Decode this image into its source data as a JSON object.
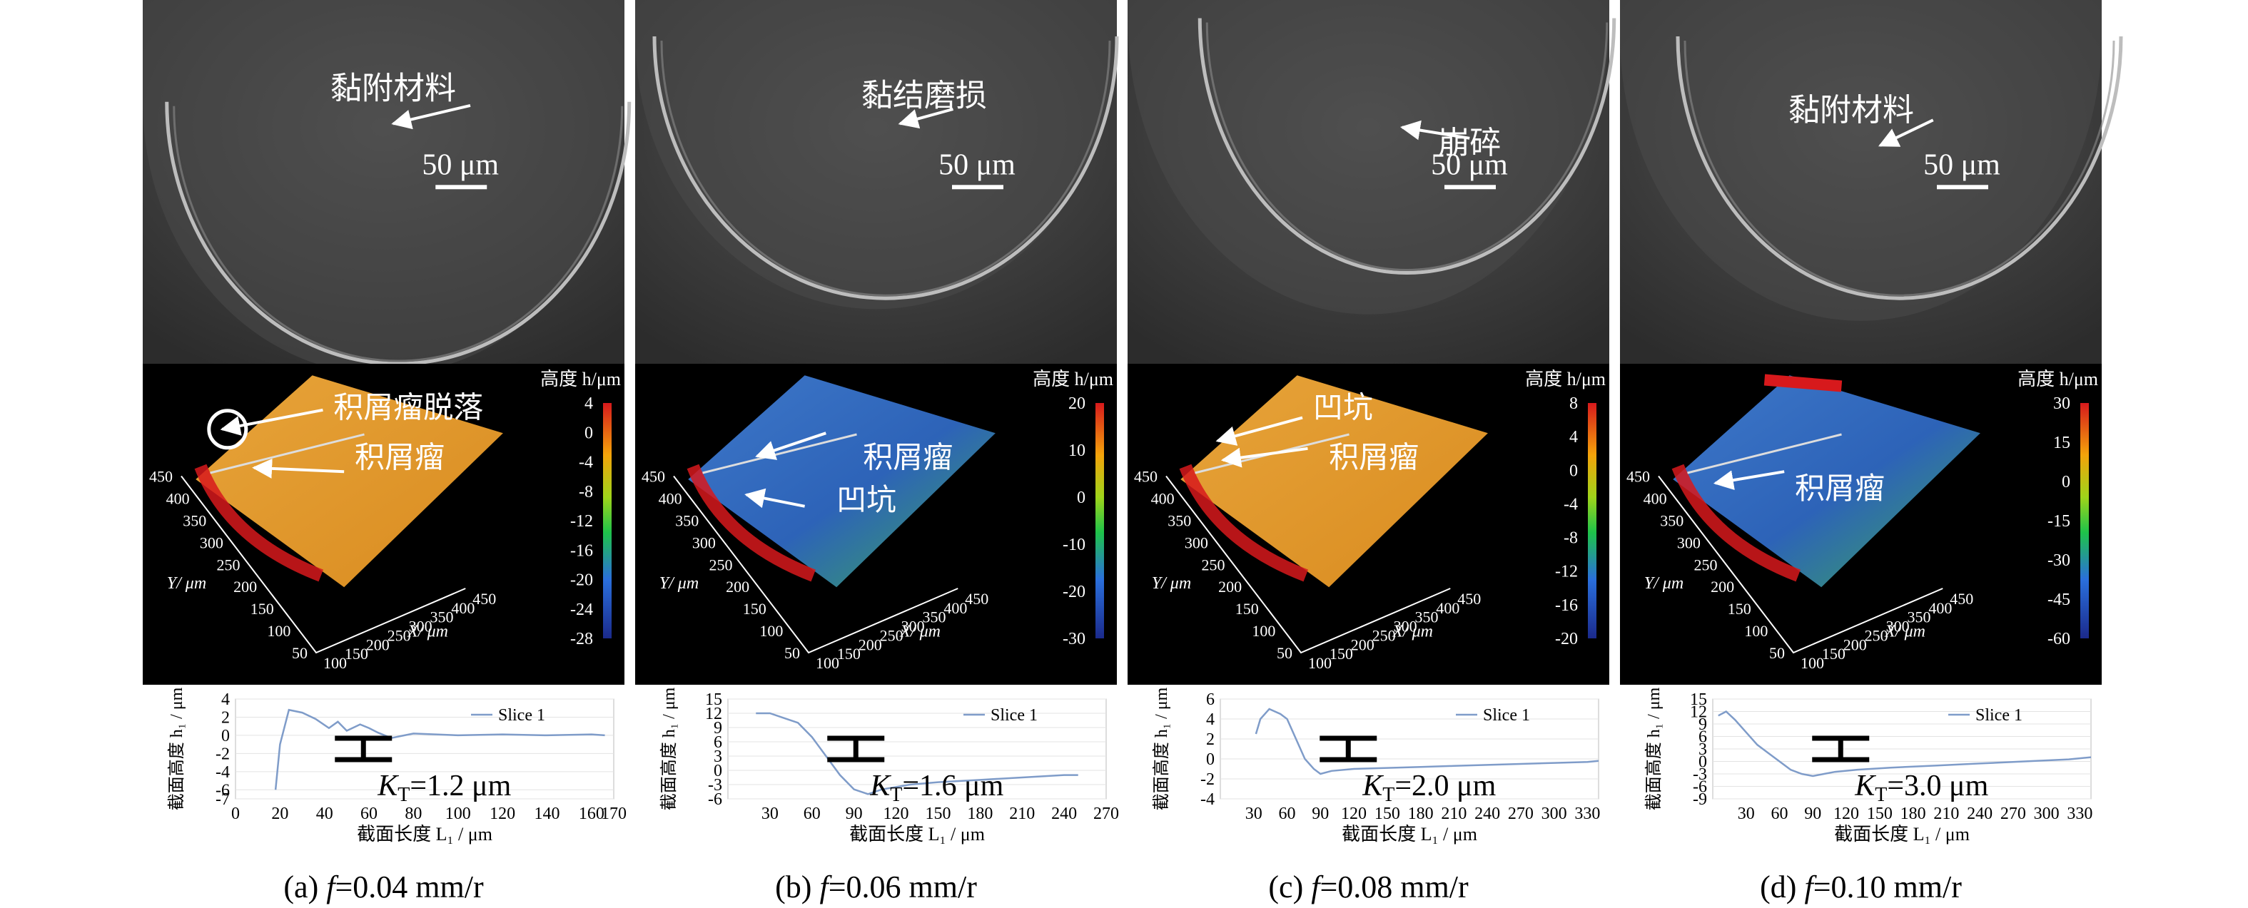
{
  "figure": {
    "panels": [
      {
        "id": "a",
        "sem": {
          "annotations": [
            "黏附材料"
          ],
          "scale_bar": "50 μm"
        },
        "map3d": {
          "legend_title": "高度 h/μm",
          "legend_ticks": [
            "4",
            "0",
            "-4",
            "-8",
            "-12",
            "-16",
            "-20",
            "-24",
            "-28"
          ],
          "annotations": [
            "积屑瘤脱落",
            "积屑瘤"
          ],
          "x_ticks": [
            "100",
            "150",
            "200",
            "250",
            "300",
            "350",
            "400",
            "450"
          ],
          "y_ticks": [
            "50",
            "100",
            "150",
            "200",
            "250",
            "300",
            "350",
            "400",
            "450"
          ],
          "x_axis": "X/ μm",
          "y_axis": "Y/ μm"
        },
        "profile": {
          "ylabel": "截面高度 h₁ / μm",
          "xlabel": "截面长度 L₁ / μm",
          "legend": "Slice 1",
          "kt": "K_T=1.2 μm",
          "kt_prefix": "K",
          "kt_sub": "T",
          "kt_value": "=1.2 μm"
        },
        "caption_prefix": "(a) ",
        "caption_var": "f",
        "caption_rest": "=0.04 mm/r"
      },
      {
        "id": "b",
        "sem": {
          "annotations": [
            "黏结磨损"
          ],
          "scale_bar": "50 μm"
        },
        "map3d": {
          "legend_title": "高度 h/μm",
          "legend_ticks": [
            "20",
            "10",
            "0",
            "-10",
            "-20",
            "-30"
          ],
          "annotations": [
            "积屑瘤",
            "凹坑"
          ],
          "x_ticks": [
            "100",
            "150",
            "200",
            "250",
            "300",
            "350",
            "400",
            "450"
          ],
          "y_ticks": [
            "50",
            "100",
            "150",
            "200",
            "250",
            "300",
            "350",
            "400",
            "450"
          ],
          "x_axis": "X/ μm",
          "y_axis": "Y/ μm"
        },
        "profile": {
          "ylabel": "截面高度 h₁ / μm",
          "xlabel": "截面长度 L₁ / μm",
          "legend": "Slice 1",
          "kt_prefix": "K",
          "kt_sub": "T",
          "kt_value": "=1.6 μm"
        },
        "caption_prefix": "(b) ",
        "caption_var": "f",
        "caption_rest": "=0.06 mm/r"
      },
      {
        "id": "c",
        "sem": {
          "annotations": [
            "崩碎"
          ],
          "scale_bar": "50 μm"
        },
        "map3d": {
          "legend_title": "高度 h/μm",
          "legend_ticks": [
            "8",
            "4",
            "0",
            "-4",
            "-8",
            "-12",
            "-16",
            "-20"
          ],
          "annotations": [
            "凹坑",
            "积屑瘤"
          ],
          "x_ticks": [
            "100",
            "150",
            "200",
            "250",
            "300",
            "350",
            "400",
            "450"
          ],
          "y_ticks": [
            "50",
            "100",
            "150",
            "200",
            "250",
            "300",
            "350",
            "400",
            "450"
          ],
          "x_axis": "X/ μm",
          "y_axis": "Y/ μm"
        },
        "profile": {
          "ylabel": "截面高度 h₁ / μm",
          "xlabel": "截面长度 L₁ / μm",
          "legend": "Slice 1",
          "kt_prefix": "K",
          "kt_sub": "T",
          "kt_value": "=2.0 μm"
        },
        "caption_prefix": "(c) ",
        "caption_var": "f",
        "caption_rest": "=0.08 mm/r"
      },
      {
        "id": "d",
        "sem": {
          "annotations": [
            "黏附材料"
          ],
          "scale_bar": "50 μm"
        },
        "map3d": {
          "legend_title": "高度 h/μm",
          "legend_ticks": [
            "30",
            "15",
            "0",
            "-15",
            "-30",
            "-45",
            "-60"
          ],
          "annotations": [
            "积屑瘤"
          ],
          "x_ticks": [
            "100",
            "150",
            "200",
            "250",
            "300",
            "350",
            "400",
            "450"
          ],
          "y_ticks": [
            "50",
            "100",
            "150",
            "200",
            "250",
            "300",
            "350",
            "400",
            "450"
          ],
          "x_axis": "X/ μm",
          "y_axis": "Y/ μm"
        },
        "profile": {
          "ylabel": "截面高度 h₁ / μm",
          "xlabel": "截面长度 L₁ / μm",
          "legend": "Slice 1",
          "kt_prefix": "K",
          "kt_sub": "T",
          "kt_value": "=3.0 μm"
        },
        "caption_prefix": "(d) ",
        "caption_var": "f",
        "caption_rest": "=0.10 mm/r"
      }
    ]
  },
  "chart_data": [
    {
      "type": "line",
      "panel": "a",
      "xlabel": "截面长度 L₁ / μm",
      "ylabel": "截面高度 h₁ / μm",
      "xlim": [
        0,
        170
      ],
      "ylim": [
        -7,
        4
      ],
      "x_ticks": [
        0,
        20,
        40,
        60,
        80,
        100,
        120,
        140,
        160,
        170
      ],
      "y_ticks": [
        4,
        2,
        0,
        -2,
        -4,
        -6,
        -7
      ],
      "series": [
        {
          "name": "Slice 1",
          "x": [
            18,
            20,
            24,
            30,
            36,
            42,
            46,
            50,
            56,
            60,
            64,
            70,
            76,
            80,
            90,
            100,
            120,
            140,
            160,
            166
          ],
          "y": [
            -6,
            -1,
            2.8,
            2.5,
            1.8,
            0.8,
            1.5,
            0.5,
            1.2,
            0.8,
            0.3,
            -0.3,
            0,
            0.2,
            0.1,
            0,
            0.1,
            0,
            0.1,
            0
          ]
        }
      ]
    },
    {
      "type": "line",
      "panel": "b",
      "xlabel": "截面长度 L₁ / μm",
      "ylabel": "截面高度 h₁ / μm",
      "xlim": [
        0,
        270
      ],
      "ylim": [
        -6,
        15
      ],
      "x_ticks": [
        30,
        60,
        90,
        120,
        150,
        180,
        210,
        240,
        270
      ],
      "y_ticks": [
        15,
        12,
        9,
        6,
        3,
        0,
        -3,
        -6
      ],
      "series": [
        {
          "name": "Slice 1",
          "x": [
            20,
            30,
            40,
            50,
            60,
            70,
            80,
            90,
            100,
            110,
            120,
            130,
            150,
            180,
            210,
            240,
            250
          ],
          "y": [
            12,
            12,
            11,
            10,
            7,
            3,
            -1,
            -4,
            -5,
            -4,
            -3.5,
            -3,
            -2.5,
            -2,
            -1.5,
            -1,
            -1
          ]
        }
      ]
    },
    {
      "type": "line",
      "panel": "c",
      "xlabel": "截面长度 L₁ / μm",
      "ylabel": "截面高度 h₁ / μm",
      "xlim": [
        0,
        340
      ],
      "ylim": [
        -4,
        6
      ],
      "x_ticks": [
        30,
        60,
        90,
        120,
        150,
        180,
        210,
        240,
        270,
        300,
        330
      ],
      "y_ticks": [
        6,
        4,
        2,
        0,
        -2,
        -4
      ],
      "series": [
        {
          "name": "Slice 1",
          "x": [
            32,
            36,
            44,
            54,
            60,
            68,
            76,
            84,
            90,
            100,
            120,
            150,
            180,
            210,
            240,
            270,
            300,
            330,
            340
          ],
          "y": [
            2.5,
            4,
            5,
            4.5,
            4,
            2,
            0,
            -1,
            -1.5,
            -1.2,
            -1,
            -0.9,
            -0.8,
            -0.7,
            -0.6,
            -0.5,
            -0.4,
            -0.3,
            -0.2
          ]
        }
      ]
    },
    {
      "type": "line",
      "panel": "d",
      "xlabel": "截面长度 L₁ / μm",
      "ylabel": "截面高度 h₁ / μm",
      "xlim": [
        0,
        340
      ],
      "ylim": [
        -9,
        15
      ],
      "x_ticks": [
        30,
        60,
        90,
        120,
        150,
        180,
        210,
        240,
        270,
        300,
        330
      ],
      "y_ticks": [
        15,
        12,
        9,
        6,
        3,
        0,
        -3,
        -6,
        -9
      ],
      "series": [
        {
          "name": "Slice 1",
          "x": [
            5,
            12,
            20,
            30,
            40,
            50,
            60,
            70,
            80,
            90,
            100,
            110,
            130,
            160,
            200,
            240,
            280,
            320,
            340
          ],
          "y": [
            11,
            12,
            10,
            7,
            4,
            2,
            0,
            -2,
            -3,
            -3.5,
            -3,
            -2.5,
            -2,
            -1.5,
            -1,
            -0.5,
            0,
            0.5,
            1
          ]
        }
      ]
    }
  ]
}
